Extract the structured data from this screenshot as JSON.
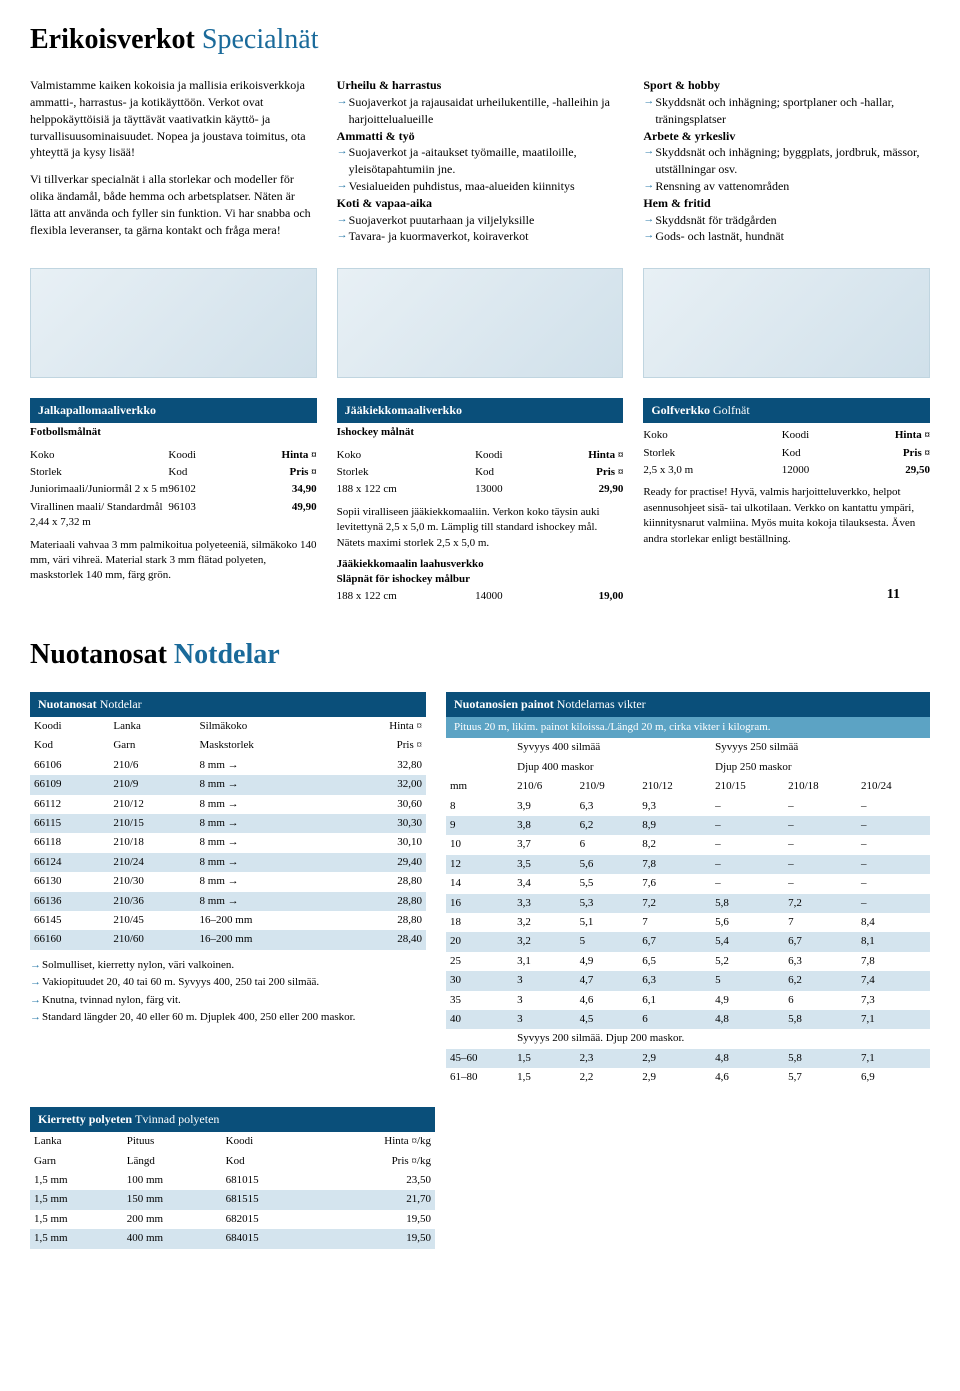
{
  "colors": {
    "darkblue": "#0a4f7a",
    "lightblue": "#5ca3c4",
    "stripe": "#d4e4ee",
    "arrow": "#2a7aa8",
    "titleblue": "#1a6a9a"
  },
  "title1": {
    "fi": "Erikoisverkot",
    "sv": "Specialnät"
  },
  "intro": {
    "col1p1": "Valmistamme kaiken kokoisia ja mallisia erikoisverkkoja ammatti-, harrastus- ja kotikäyttöön. Verkot ovat helppokäyttöisiä ja täyttävät vaativatkin käyttö- ja turvallisuusominaisuudet. Nopea ja joustava toimitus, ota yhteyttä ja kysy lisää!",
    "col1p2": "Vi tillverkar specialnät i alla storlekar och modeller för olika ändamål, både hemma och arbetsplatser. Näten är lätta att använda och fyller sin funktion. Vi har snabba och flexibla leveranser, ta gärna kontakt och fråga mera!",
    "col2": {
      "h1": "Urheilu & harrastus",
      "b1": "Suojaverkot ja rajausaidat urheilukentille, -halleihin ja harjoittelualueille",
      "h2": "Ammatti & työ",
      "b2": "Suojaverkot ja -aitaukset työmaille, maatiloille, yleisötapahtumiin jne.",
      "b3": "Vesialueiden puhdistus, maa-alueiden kiinnitys",
      "h3": "Koti & vapaa-aika",
      "b4": "Suojaverkot puutarhaan ja viljelyksille",
      "b5": "Tavara- ja kuormaverkot, koiraverkot"
    },
    "col3": {
      "h1": "Sport & hobby",
      "b1": "Skyddsnät och inhägning; sportplaner och -hallar, träningsplatser",
      "h2": "Arbete & yrkesliv",
      "b2": "Skyddsnät och inhägning; byggplats, jordbruk, mässor, utställningar osv.",
      "b3": "Rensning av vattenområden",
      "h3": "Hem & fritid",
      "b4": "Skyddsnät för trädgården",
      "b5": "Gods- och lastnät, hundnät"
    }
  },
  "products": {
    "headers": {
      "koko": "Koko",
      "koodi": "Koodi",
      "hinta": "Hinta ¤",
      "storlek": "Storlek",
      "kod": "Kod",
      "pris": "Pris ¤"
    },
    "p1": {
      "title": "Jalkapallomaaliverkko",
      "sub": "Fotbollsmålnät",
      "r1": {
        "a": "Juniorimaali/Juniormål 2 x 5 m",
        "b": "96102",
        "c": "34,90"
      },
      "r2": {
        "a": "Virallinen maali/ Standardmål 2,44 x 7,32 m",
        "b": "96103",
        "c": "49,90"
      },
      "note": "Materiaali vahvaa 3 mm palmikoitua polyeteeniä, silmäkoko 140 mm, väri vihreä. Material stark 3 mm flätad polyeten, maskstorlek 140 mm, färg grön."
    },
    "p2": {
      "title": "Jääkiekkomaaliverkko",
      "sub": "Ishockey målnät",
      "r1": {
        "a": "188 x 122 cm",
        "b": "13000",
        "c": "29,90"
      },
      "note1": "Sopii viralliseen jääkiekkomaaliin. Verkon koko täysin auki levitettynä 2,5 x 5,0 m. Lämplig till standard ishockey mål. Nätets maximi storlek 2,5 x 5,0 m.",
      "sub2": "Jääkiekkomaalin laahusverkko",
      "sub3": "Släpnät för ishockey målbur",
      "r2": {
        "a": "188 x 122 cm",
        "b": "14000",
        "c": "19,00"
      }
    },
    "p3": {
      "title": "Golfverkko",
      "titlesv": "Golfnät",
      "r1": {
        "a": "2,5 x 3,0 m",
        "b": "12000",
        "c": "29,50"
      },
      "note": "Ready for practise! Hyvä, valmis harjoitteluverkko, helpot asennusohjeet sisä- tai ulkotilaan. Verkko on kantattu ympäri, kiinnitysnarut valmiina. Myös muita kokoja tilauksesta. Även andra storlekar enligt beställning."
    }
  },
  "pagenum": "11",
  "title2": {
    "fi": "Nuotanosat",
    "sv": "Notdelar"
  },
  "table1": {
    "title": "Nuotanosat",
    "titlesv": "Notdelar",
    "h": {
      "a": "Koodi",
      "b": "Lanka",
      "c": "Silmäkoko",
      "d": "Hinta ¤",
      "a2": "Kod",
      "b2": "Garn",
      "c2": "Maskstorlek",
      "d2": "Pris ¤"
    },
    "rows": [
      [
        "66106",
        "210/6",
        "8 mm →",
        "32,80"
      ],
      [
        "66109",
        "210/9",
        "8 mm →",
        "32,00"
      ],
      [
        "66112",
        "210/12",
        "8 mm →",
        "30,60"
      ],
      [
        "66115",
        "210/15",
        "8 mm →",
        "30,30"
      ],
      [
        "66118",
        "210/18",
        "8 mm →",
        "30,10"
      ],
      [
        "66124",
        "210/24",
        "8 mm →",
        "29,40"
      ],
      [
        "66130",
        "210/30",
        "8 mm →",
        "28,80"
      ],
      [
        "66136",
        "210/36",
        "8 mm →",
        "28,80"
      ],
      [
        "66145",
        "210/45",
        "16–200 mm",
        "28,80"
      ],
      [
        "66160",
        "210/60",
        "16–200 mm",
        "28,40"
      ]
    ],
    "notes": [
      "Solmulliset, kierretty nylon, väri valkoinen.",
      "Vakiopituudet 20, 40 tai 60 m. Syvyys 400, 250 tai 200 silmää.",
      "Knutna, tvinnad nylon, färg vit.",
      "Standard längder 20, 40 eller 60 m. Djuplek 400, 250 eller 200 maskor."
    ]
  },
  "table2": {
    "title": "Nuotanosien painot",
    "titlesv": "Notdelarnas vikter",
    "sub": "Pituus 20 m, likim. painot kiloissa./Längd 20 m, cirka vikter i kilogram.",
    "h1": {
      "a": "Syvyys 400 silmää",
      "b": "Syvyys 250 silmää",
      "a2": "Djup 400 maskor",
      "b2": "Djup 250 maskor"
    },
    "cols": [
      "mm",
      "210/6",
      "210/9",
      "210/12",
      "210/15",
      "210/18",
      "210/24"
    ],
    "rows": [
      [
        "8",
        "3,9",
        "6,3",
        "9,3",
        "–",
        "–",
        "–"
      ],
      [
        "9",
        "3,8",
        "6,2",
        "8,9",
        "–",
        "–",
        "–"
      ],
      [
        "10",
        "3,7",
        "6",
        "8,2",
        "–",
        "–",
        "–"
      ],
      [
        "12",
        "3,5",
        "5,6",
        "7,8",
        "–",
        "–",
        "–"
      ],
      [
        "14",
        "3,4",
        "5,5",
        "7,6",
        "–",
        "–",
        "–"
      ],
      [
        "16",
        "3,3",
        "5,3",
        "7,2",
        "5,8",
        "7,2",
        "–"
      ],
      [
        "18",
        "3,2",
        "5,1",
        "7",
        "5,6",
        "7",
        "8,4"
      ],
      [
        "20",
        "3,2",
        "5",
        "6,7",
        "5,4",
        "6,7",
        "8,1"
      ],
      [
        "25",
        "3,1",
        "4,9",
        "6,5",
        "5,2",
        "6,3",
        "7,8"
      ],
      [
        "30",
        "3",
        "4,7",
        "6,3",
        "5",
        "6,2",
        "7,4"
      ],
      [
        "35",
        "3",
        "4,6",
        "6,1",
        "4,9",
        "6",
        "7,3"
      ],
      [
        "40",
        "3",
        "4,5",
        "6",
        "4,8",
        "5,8",
        "7,1"
      ]
    ],
    "sub2": "Syvyys 200 silmää. Djup 200 maskor.",
    "rows2": [
      [
        "45–60",
        "1,5",
        "2,3",
        "2,9",
        "4,8",
        "5,8",
        "7,1"
      ],
      [
        "61–80",
        "1,5",
        "2,2",
        "2,9",
        "4,6",
        "5,7",
        "6,9"
      ]
    ]
  },
  "table3": {
    "title": "Kierretty polyeten",
    "titlesv": "Tvinnad polyeten",
    "h": {
      "a": "Lanka",
      "b": "Pituus",
      "c": "Koodi",
      "d": "Hinta ¤/kg",
      "a2": "Garn",
      "b2": "Längd",
      "c2": "Kod",
      "d2": "Pris ¤/kg"
    },
    "rows": [
      [
        "1,5 mm",
        "100 mm",
        "681015",
        "23,50"
      ],
      [
        "1,5 mm",
        "150 mm",
        "681515",
        "21,70"
      ],
      [
        "1,5 mm",
        "200 mm",
        "682015",
        "19,50"
      ],
      [
        "1,5 mm",
        "400 mm",
        "684015",
        "19,50"
      ]
    ]
  }
}
